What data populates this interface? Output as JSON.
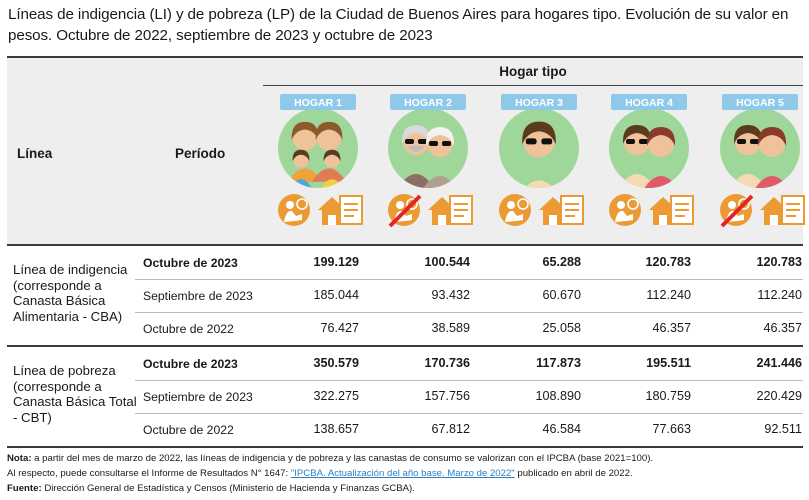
{
  "title": "Líneas de indigencia (LI) y de pobreza (LP) de la Ciudad de Buenos Aires para hogares tipo. Evolución de su valor en pesos. Octubre de 2022, septiembre de 2023 y octubre de 2023",
  "header": {
    "linea": "Línea",
    "periodo": "Período",
    "hogar_tipo": "Hogar tipo",
    "hogares": [
      {
        "label": "HOGAR 1",
        "icon": "family-parents-two-children-icon",
        "crossed": false
      },
      {
        "label": "HOGAR 2",
        "icon": "elderly-couple-icon",
        "crossed": true
      },
      {
        "label": "HOGAR 3",
        "icon": "single-adult-icon",
        "crossed": false
      },
      {
        "label": "HOGAR 4",
        "icon": "adult-couple-icon",
        "crossed": false
      },
      {
        "label": "HOGAR 5",
        "icon": "adult-couple-icon",
        "crossed": true
      }
    ]
  },
  "colors": {
    "accent": "#ec9b34",
    "badge": "#8fc9ea",
    "rule": "#3a3a3a",
    "header_bg": "#eeeeee",
    "link": "#2b7fc4",
    "cross": "#e0262a"
  },
  "sections": [
    {
      "label": "Línea de indigencia (corresponde a Canasta Básica Alimentaria - CBA)",
      "rows": [
        {
          "periodo": "Octubre de 2023",
          "bold": true,
          "values": [
            "199.129",
            "100.544",
            "65.288",
            "120.783",
            "120.783"
          ]
        },
        {
          "periodo": "Septiembre de 2023",
          "bold": false,
          "values": [
            "185.044",
            "93.432",
            "60.670",
            "112.240",
            "112.240"
          ]
        },
        {
          "periodo": "Octubre de 2022",
          "bold": false,
          "values": [
            "76.427",
            "38.589",
            "25.058",
            "46.357",
            "46.357"
          ]
        }
      ]
    },
    {
      "label": "Línea de pobreza (corresponde a Canasta Básica Total - CBT)",
      "rows": [
        {
          "periodo": "Octubre de 2023",
          "bold": true,
          "values": [
            "350.579",
            "170.736",
            "117.873",
            "195.511",
            "241.446"
          ]
        },
        {
          "periodo": "Septiembre de 2023",
          "bold": false,
          "values": [
            "322.275",
            "157.756",
            "108.890",
            "180.759",
            "220.429"
          ]
        },
        {
          "periodo": "Octubre de 2022",
          "bold": false,
          "values": [
            "138.657",
            "67.812",
            "46.584",
            "77.663",
            "92.511"
          ]
        }
      ]
    }
  ],
  "notes": {
    "nota_label": "Nota:",
    "nota_text": " a partir del mes de marzo de 2022, las líneas de indigencia y de pobreza y las canastas de consumo se valorizan con el IPCBA (base 2021=100).",
    "respecto_text": "Al respecto, puede consultarse el Informe de Resultados N° 1647: ",
    "link_text": "\"IPCBA. Actualización del año base. Marzo de 2022\"",
    "respecto_tail": " publicado en abril de 2022.",
    "fuente_label": "Fuente:",
    "fuente_text": " Dirección General de Estadística y Censos (Ministerio de Hacienda y Finanzas GCBA)."
  }
}
